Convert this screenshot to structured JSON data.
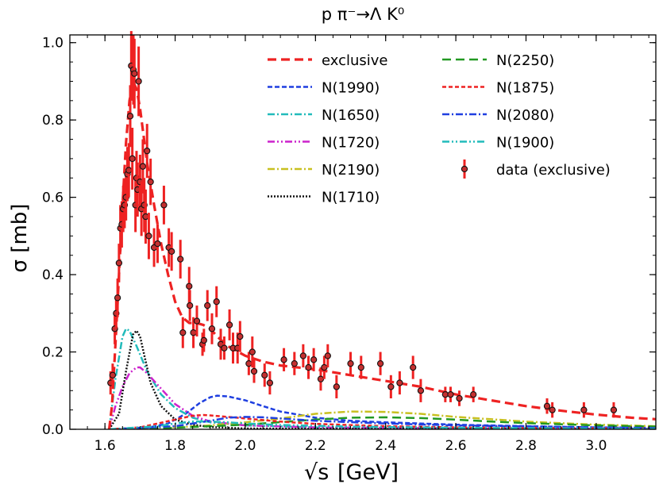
{
  "chart_data": {
    "type": "line",
    "title": "p π⁻→Λ K⁰",
    "xlabel_sqrt": "√s",
    "xlabel_unit": "[GeV]",
    "ylabel": "σ [mb]",
    "xlim": [
      1.5,
      3.17
    ],
    "ylim": [
      0.0,
      1.02
    ],
    "xticks": [
      1.6,
      1.8,
      2.0,
      2.2,
      2.4,
      2.6,
      2.8,
      3.0
    ],
    "xtick_labels": [
      "1.6",
      "1.8",
      "2.0",
      "2.2",
      "2.4",
      "2.6",
      "2.8",
      "3.0"
    ],
    "yticks": [
      0.0,
      0.2,
      0.4,
      0.6,
      0.8,
      1.0
    ],
    "ytick_labels": [
      "0.0",
      "0.2",
      "0.4",
      "0.6",
      "0.8",
      "1.0"
    ],
    "series": [
      {
        "name": "exclusive",
        "color": "#ee2222",
        "dash": "11,6",
        "width": 3.2,
        "x": [
          1.612,
          1.62,
          1.63,
          1.64,
          1.65,
          1.66,
          1.67,
          1.68,
          1.69,
          1.7,
          1.71,
          1.72,
          1.74,
          1.76,
          1.78,
          1.8,
          1.82,
          1.84,
          1.86,
          1.88,
          1.9,
          1.92,
          1.95,
          2.0,
          2.05,
          2.1,
          2.2,
          2.3,
          2.4,
          2.5,
          2.6,
          2.7,
          2.8,
          2.9,
          3.0,
          3.1,
          3.17
        ],
        "y": [
          0.0,
          0.06,
          0.22,
          0.4,
          0.58,
          0.74,
          0.85,
          0.9,
          0.88,
          0.83,
          0.76,
          0.69,
          0.58,
          0.48,
          0.4,
          0.33,
          0.29,
          0.275,
          0.275,
          0.27,
          0.26,
          0.24,
          0.215,
          0.19,
          0.175,
          0.165,
          0.155,
          0.14,
          0.125,
          0.11,
          0.09,
          0.075,
          0.06,
          0.048,
          0.038,
          0.03,
          0.026
        ]
      },
      {
        "name": "N(1990)",
        "color": "#1f3fe0",
        "dash": "6,3",
        "width": 2.5,
        "x": [
          1.612,
          1.7,
          1.78,
          1.83,
          1.87,
          1.9,
          1.92,
          1.95,
          2.0,
          2.05,
          2.1,
          2.2,
          2.3,
          2.4,
          2.5,
          2.6,
          2.8,
          3.0,
          3.17
        ],
        "y": [
          0.0,
          0.0,
          0.015,
          0.04,
          0.068,
          0.083,
          0.087,
          0.085,
          0.075,
          0.06,
          0.046,
          0.03,
          0.022,
          0.018,
          0.015,
          0.012,
          0.008,
          0.005,
          0.004
        ]
      },
      {
        "name": "N(1650)",
        "color": "#22bbbb",
        "dash": "9,3,2,3",
        "width": 2.5,
        "x": [
          1.612,
          1.63,
          1.65,
          1.66,
          1.67,
          1.69,
          1.72,
          1.76,
          1.8,
          1.85,
          1.9,
          2.0,
          2.2,
          2.5,
          3.17
        ],
        "y": [
          0.0,
          0.13,
          0.24,
          0.26,
          0.255,
          0.215,
          0.15,
          0.09,
          0.055,
          0.03,
          0.018,
          0.01,
          0.005,
          0.003,
          0.001
        ]
      },
      {
        "name": "N(1720)",
        "color": "#cc22cc",
        "dash": "9,3,2,3,2,3",
        "width": 2.5,
        "x": [
          1.612,
          1.63,
          1.65,
          1.67,
          1.69,
          1.7,
          1.72,
          1.75,
          1.8,
          1.85,
          1.9,
          2.0,
          2.2,
          2.5,
          3.17
        ],
        "y": [
          0.0,
          0.06,
          0.11,
          0.145,
          0.16,
          0.16,
          0.145,
          0.115,
          0.065,
          0.035,
          0.02,
          0.01,
          0.005,
          0.003,
          0.001
        ]
      },
      {
        "name": "N(2190)",
        "color": "#c8c020",
        "dash": "9,3,2,3",
        "width": 2.5,
        "x": [
          1.612,
          1.8,
          1.9,
          2.0,
          2.1,
          2.2,
          2.3,
          2.4,
          2.5,
          2.6,
          2.7,
          2.8,
          3.0,
          3.17
        ],
        "y": [
          0.0,
          0.005,
          0.01,
          0.018,
          0.028,
          0.04,
          0.046,
          0.045,
          0.04,
          0.032,
          0.026,
          0.02,
          0.012,
          0.008
        ]
      },
      {
        "name": "N(1710)",
        "color": "#111111",
        "dash": "2,2",
        "width": 2.5,
        "x": [
          1.612,
          1.64,
          1.66,
          1.68,
          1.69,
          1.7,
          1.71,
          1.73,
          1.76,
          1.8,
          1.85,
          1.9,
          2.0,
          2.2,
          3.17
        ],
        "y": [
          0.0,
          0.04,
          0.15,
          0.245,
          0.255,
          0.24,
          0.2,
          0.12,
          0.06,
          0.025,
          0.012,
          0.006,
          0.002,
          0.001,
          0.0
        ]
      },
      {
        "name": "N(2250)",
        "color": "#229922",
        "dash": "11,6",
        "width": 2.5,
        "x": [
          1.612,
          1.8,
          2.0,
          2.2,
          2.3,
          2.4,
          2.5,
          2.6,
          2.7,
          2.8,
          3.0,
          3.17
        ],
        "y": [
          0.0,
          0.004,
          0.012,
          0.025,
          0.03,
          0.031,
          0.029,
          0.025,
          0.02,
          0.016,
          0.01,
          0.007
        ]
      },
      {
        "name": "N(1875)",
        "color": "#ee2222",
        "dash": "5,3",
        "width": 2.5,
        "x": [
          1.612,
          1.7,
          1.75,
          1.8,
          1.85,
          1.88,
          1.9,
          1.95,
          2.0,
          2.1,
          2.2,
          2.4,
          2.6,
          3.17
        ],
        "y": [
          0.0,
          0.005,
          0.015,
          0.025,
          0.035,
          0.037,
          0.036,
          0.032,
          0.028,
          0.02,
          0.014,
          0.008,
          0.005,
          0.002
        ]
      },
      {
        "name": "N(2080)",
        "color": "#1f3fe0",
        "dash": "9,3,2,3",
        "width": 2.5,
        "x": [
          1.612,
          1.8,
          1.9,
          1.95,
          2.0,
          2.05,
          2.1,
          2.2,
          2.4,
          2.6,
          3.0,
          3.17
        ],
        "y": [
          0.0,
          0.008,
          0.022,
          0.03,
          0.032,
          0.031,
          0.028,
          0.022,
          0.015,
          0.01,
          0.005,
          0.003
        ]
      },
      {
        "name": "N(1900)",
        "color": "#22bbbb",
        "dash": "9,3,2,3,2,3",
        "width": 2.5,
        "x": [
          1.612,
          1.75,
          1.8,
          1.85,
          1.9,
          1.95,
          2.0,
          2.1,
          2.3,
          2.6,
          3.0,
          3.17
        ],
        "y": [
          0.0,
          0.008,
          0.015,
          0.02,
          0.02,
          0.018,
          0.015,
          0.011,
          0.007,
          0.004,
          0.002,
          0.001
        ]
      }
    ],
    "data_points": {
      "name": "data (exclusive)",
      "color": "#ee2222",
      "points": [
        [
          1.616,
          0.12,
          0.03
        ],
        [
          1.622,
          0.14,
          0.03
        ],
        [
          1.628,
          0.26,
          0.04
        ],
        [
          1.632,
          0.3,
          0.04
        ],
        [
          1.636,
          0.34,
          0.05
        ],
        [
          1.64,
          0.43,
          0.05
        ],
        [
          1.644,
          0.52,
          0.06
        ],
        [
          1.648,
          0.53,
          0.06
        ],
        [
          1.652,
          0.57,
          0.06
        ],
        [
          1.656,
          0.58,
          0.06
        ],
        [
          1.66,
          0.6,
          0.06
        ],
        [
          1.664,
          0.66,
          0.07
        ],
        [
          1.668,
          0.67,
          0.07
        ],
        [
          1.672,
          0.81,
          0.08
        ],
        [
          1.675,
          0.94,
          0.09
        ],
        [
          1.678,
          0.7,
          0.08
        ],
        [
          1.681,
          0.93,
          0.09
        ],
        [
          1.684,
          0.92,
          0.09
        ],
        [
          1.687,
          0.58,
          0.07
        ],
        [
          1.69,
          0.65,
          0.07
        ],
        [
          1.693,
          0.62,
          0.07
        ],
        [
          1.696,
          0.9,
          0.09
        ],
        [
          1.7,
          0.64,
          0.07
        ],
        [
          1.704,
          0.57,
          0.07
        ],
        [
          1.708,
          0.68,
          0.07
        ],
        [
          1.712,
          0.58,
          0.07
        ],
        [
          1.716,
          0.55,
          0.07
        ],
        [
          1.72,
          0.72,
          0.07
        ],
        [
          1.725,
          0.5,
          0.06
        ],
        [
          1.73,
          0.64,
          0.06
        ],
        [
          1.74,
          0.47,
          0.05
        ],
        [
          1.75,
          0.48,
          0.05
        ],
        [
          1.768,
          0.58,
          0.05
        ],
        [
          1.782,
          0.47,
          0.05
        ],
        [
          1.79,
          0.46,
          0.05
        ],
        [
          1.815,
          0.44,
          0.05
        ],
        [
          1.822,
          0.25,
          0.04
        ],
        [
          1.84,
          0.37,
          0.05
        ],
        [
          1.842,
          0.32,
          0.04
        ],
        [
          1.852,
          0.25,
          0.04
        ],
        [
          1.862,
          0.28,
          0.04
        ],
        [
          1.878,
          0.22,
          0.03
        ],
        [
          1.882,
          0.23,
          0.03
        ],
        [
          1.892,
          0.32,
          0.04
        ],
        [
          1.905,
          0.26,
          0.04
        ],
        [
          1.918,
          0.33,
          0.04
        ],
        [
          1.93,
          0.22,
          0.04
        ],
        [
          1.94,
          0.21,
          0.03
        ],
        [
          1.955,
          0.27,
          0.04
        ],
        [
          1.965,
          0.21,
          0.04
        ],
        [
          1.978,
          0.21,
          0.04
        ],
        [
          1.985,
          0.24,
          0.04
        ],
        [
          2.01,
          0.17,
          0.03
        ],
        [
          2.02,
          0.2,
          0.04
        ],
        [
          2.025,
          0.15,
          0.03
        ],
        [
          2.055,
          0.14,
          0.03
        ],
        [
          2.07,
          0.12,
          0.03
        ],
        [
          2.11,
          0.18,
          0.03
        ],
        [
          2.14,
          0.17,
          0.03
        ],
        [
          2.165,
          0.19,
          0.03
        ],
        [
          2.18,
          0.16,
          0.03
        ],
        [
          2.195,
          0.18,
          0.03
        ],
        [
          2.215,
          0.13,
          0.03
        ],
        [
          2.225,
          0.16,
          0.03
        ],
        [
          2.235,
          0.19,
          0.03
        ],
        [
          2.26,
          0.11,
          0.03
        ],
        [
          2.3,
          0.17,
          0.03
        ],
        [
          2.33,
          0.16,
          0.03
        ],
        [
          2.385,
          0.17,
          0.03
        ],
        [
          2.415,
          0.11,
          0.03
        ],
        [
          2.44,
          0.12,
          0.03
        ],
        [
          2.478,
          0.16,
          0.03
        ],
        [
          2.5,
          0.1,
          0.03
        ],
        [
          2.57,
          0.09,
          0.02
        ],
        [
          2.585,
          0.09,
          0.02
        ],
        [
          2.61,
          0.08,
          0.02
        ],
        [
          2.65,
          0.09,
          0.02
        ],
        [
          2.86,
          0.06,
          0.02
        ],
        [
          2.875,
          0.05,
          0.02
        ],
        [
          2.965,
          0.05,
          0.02
        ],
        [
          3.05,
          0.05,
          0.02
        ]
      ]
    },
    "legend": {
      "position": "top-right",
      "columns": [
        [
          "exclusive",
          "N(1990)",
          "N(1650)",
          "N(1720)",
          "N(2190)",
          "N(1710)"
        ],
        [
          "N(2250)",
          "N(1875)",
          "N(2080)",
          "N(1900)",
          "data (exclusive)"
        ]
      ]
    }
  }
}
